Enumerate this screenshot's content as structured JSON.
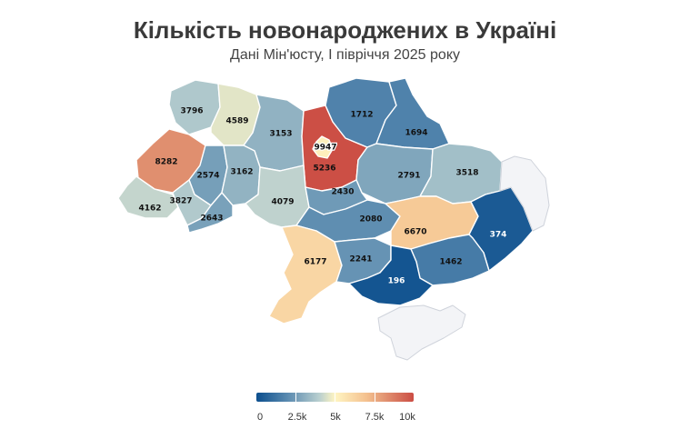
{
  "title": "Кількість новонароджених в Україні",
  "subtitle": "Дані Мін'юсту, I півріччя 2025 року",
  "map_data": {
    "metric": "births",
    "scale": {
      "min": 0,
      "max": 10000,
      "colors": [
        "#0c4f8e",
        "#5b8bb0",
        "#b9cfcf",
        "#fff5c2",
        "#f4c18f",
        "#e49a76",
        "#cb4d44"
      ]
    },
    "regions": [
      {
        "value": "3796"
      },
      {
        "value": "4589"
      },
      {
        "value": "3153"
      },
      {
        "value": "9947"
      },
      {
        "value": "1712"
      },
      {
        "value": "1694"
      },
      {
        "value": "8282"
      },
      {
        "value": "2574"
      },
      {
        "value": "3162"
      },
      {
        "value": "5236"
      },
      {
        "value": "2791"
      },
      {
        "value": "3518"
      },
      {
        "value": "4162"
      },
      {
        "value": "3827"
      },
      {
        "value": "2643"
      },
      {
        "value": "4079"
      },
      {
        "value": "2430"
      },
      {
        "value": "2080"
      },
      {
        "value": "6670"
      },
      {
        "value": "374"
      },
      {
        "value": "6177"
      },
      {
        "value": "2241"
      },
      {
        "value": "1462"
      },
      {
        "value": "196"
      }
    ],
    "no_data_regions": [
      "Luhansk",
      "Crimea"
    ]
  },
  "legend": {
    "labels": [
      "0",
      "2.5k",
      "5k",
      "7.5k",
      "10k"
    ]
  }
}
